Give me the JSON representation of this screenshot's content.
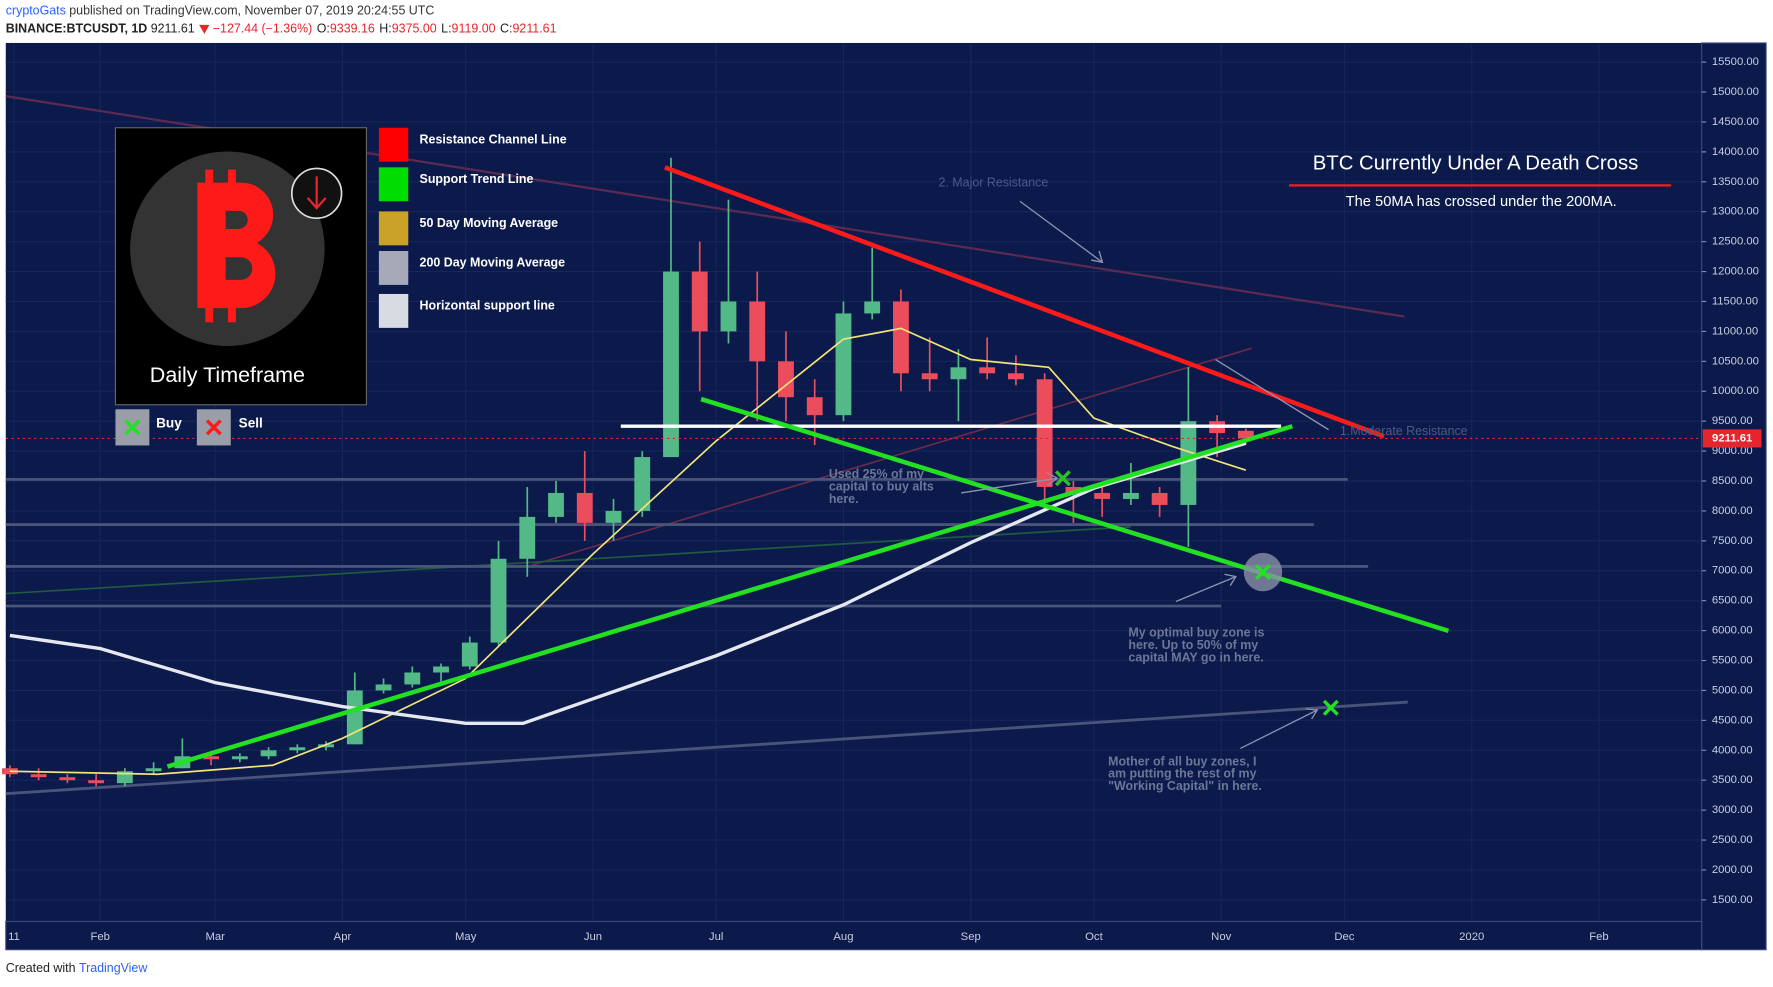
{
  "header": {
    "author": "cryptoGats",
    "published": "published on TradingView.com, November 07, 2019 20:24:55 UTC",
    "symbol": "BINANCE:BTCUSDT, 1D",
    "last": "9211.61",
    "change": "−127.44 (−1.36%)",
    "ohlc": [
      {
        "label": "O:",
        "value": "9339.16"
      },
      {
        "label": "H:",
        "value": "9375.00"
      },
      {
        "label": "L:",
        "value": "9119.00"
      },
      {
        "label": "C:",
        "value": "9211.61"
      }
    ]
  },
  "legend_box": {
    "caption": "Daily Timeframe",
    "items": [
      {
        "label": "Resistance Channel Line",
        "color": "#ff0000"
      },
      {
        "label": "Support Trend Line",
        "color": "#00dd00"
      },
      {
        "label": "50 Day Moving Average",
        "color": "#c9a227"
      },
      {
        "label": "200 Day Moving Average",
        "color": "#a6a9b8"
      },
      {
        "label": "Horizontal support line",
        "color": "#d9dbe2"
      }
    ],
    "buy": "Buy",
    "sell": "Sell"
  },
  "annotations": {
    "headline": "BTC Currently Under A Death Cross",
    "subline": "The 50MA has crossed under the 200MA.",
    "major": "2. Major Resistance",
    "moderate": "1.Moderate Resistance",
    "alts": [
      "Used 25% of my",
      "capital to buy alts",
      "here."
    ],
    "optimal": [
      "My optimal buy zone is",
      "here. Up to 50% of my",
      "capital MAY go in here."
    ],
    "mother": [
      "Mother of all buy zones, I",
      "am putting the rest of my",
      "\"Working Capital\" in here."
    ]
  },
  "footer": {
    "created": "Created with",
    "brand": "TradingView"
  },
  "chart_data": {
    "type": "candlestick",
    "up_color": "#53b987",
    "down_color": "#eb4d5c",
    "candles": {
      "x": [
        "2019-01-10",
        "2019-01-17",
        "2019-01-24",
        "2019-01-31",
        "2019-02-07",
        "2019-02-14",
        "2019-02-21",
        "2019-02-28",
        "2019-03-07",
        "2019-03-14",
        "2019-03-21",
        "2019-03-28",
        "2019-04-04",
        "2019-04-11",
        "2019-04-18",
        "2019-04-25",
        "2019-05-02",
        "2019-05-09",
        "2019-05-16",
        "2019-05-23",
        "2019-05-30",
        "2019-06-06",
        "2019-06-13",
        "2019-06-20",
        "2019-06-27",
        "2019-07-04",
        "2019-07-11",
        "2019-07-18",
        "2019-07-25",
        "2019-08-01",
        "2019-08-08",
        "2019-08-15",
        "2019-08-22",
        "2019-08-29",
        "2019-09-05",
        "2019-09-12",
        "2019-09-19",
        "2019-09-26",
        "2019-10-03",
        "2019-10-10",
        "2019-10-17",
        "2019-10-24",
        "2019-10-31",
        "2019-11-07"
      ],
      "open": [
        3700,
        3600,
        3550,
        3500,
        3450,
        3650,
        3700,
        3900,
        3850,
        3900,
        4000,
        4050,
        4100,
        5000,
        5100,
        5300,
        5400,
        5800,
        7200,
        7900,
        8300,
        7800,
        8000,
        8900,
        12000,
        11000,
        11500,
        10500,
        9900,
        9600,
        11300,
        11500,
        10300,
        10200,
        10400,
        10300,
        10200,
        8400,
        8300,
        8200,
        8300,
        8100,
        9500,
        9339.16
      ],
      "high": [
        3750,
        3700,
        3600,
        3600,
        3700,
        3800,
        4200,
        3950,
        3950,
        4050,
        4100,
        4150,
        5300,
        5200,
        5400,
        5450,
        5900,
        7500,
        8400,
        8500,
        9000,
        8200,
        9000,
        13900,
        12500,
        13200,
        12000,
        11000,
        10200,
        11500,
        12400,
        11700,
        10900,
        10700,
        10900,
        10600,
        10300,
        8500,
        8400,
        8800,
        8400,
        10400,
        9600,
        9375
      ],
      "low": [
        3550,
        3500,
        3450,
        3400,
        3400,
        3600,
        3700,
        3750,
        3800,
        3850,
        3950,
        4000,
        4100,
        4950,
        5050,
        5150,
        5350,
        5750,
        6900,
        7800,
        7500,
        7500,
        7900,
        8900,
        10000,
        10800,
        9500,
        9500,
        9100,
        9500,
        11200,
        10000,
        10000,
        9500,
        10200,
        10100,
        8000,
        7800,
        7900,
        8100,
        7900,
        7400,
        8900,
        9119
      ],
      "close": [
        3600,
        3550,
        3500,
        3450,
        3650,
        3700,
        3900,
        3850,
        3900,
        4000,
        4050,
        4100,
        5000,
        5100,
        5300,
        5400,
        5800,
        7200,
        7900,
        8300,
        7800,
        8000,
        8900,
        12000,
        11000,
        11500,
        10500,
        9900,
        9600,
        11300,
        11500,
        10300,
        10200,
        10400,
        10300,
        10200,
        8400,
        8300,
        8200,
        8300,
        8100,
        9500,
        9300,
        9211.61
      ]
    },
    "lines": [
      {
        "color": "#f2e27a",
        "x": [
          "2019-01-10",
          "2019-02-15",
          "2019-03-15",
          "2019-04-01",
          "2019-05-01",
          "2019-06-01",
          "2019-07-01",
          "2019-08-01",
          "2019-08-15",
          "2019-09-01",
          "2019-09-20",
          "2019-10-01",
          "2019-10-20",
          "2019-11-07"
        ],
        "values": [
          3650,
          3600,
          3750,
          4200,
          5200,
          7280,
          9170,
          10870,
          11050,
          10530,
          10400,
          9550,
          9080,
          8680
        ]
      },
      {
        "color": "#e6e8f0",
        "x": [
          "2019-01-10",
          "2019-02-01",
          "2019-03-01",
          "2019-04-01",
          "2019-05-01",
          "2019-05-15",
          "2019-06-01",
          "2019-07-01",
          "2019-08-01",
          "2019-09-01",
          "2019-10-01",
          "2019-11-07"
        ],
        "values": [
          5920,
          5700,
          5130,
          4730,
          4450,
          4450,
          4860,
          5580,
          6430,
          7470,
          8380,
          9130
        ]
      }
    ],
    "last_price": 9211.61,
    "xlim": [
      "2019-01-09",
      "2020-02-26"
    ],
    "xticks": [
      {
        "value": "2019-01-11",
        "label": "11"
      },
      {
        "value": "2019-02-01",
        "label": "Feb"
      },
      {
        "value": "2019-03-01",
        "label": "Mar"
      },
      {
        "value": "2019-04-01",
        "label": "Apr"
      },
      {
        "value": "2019-05-01",
        "label": "May"
      },
      {
        "value": "2019-06-01",
        "label": "Jun"
      },
      {
        "value": "2019-07-01",
        "label": "Jul"
      },
      {
        "value": "2019-08-01",
        "label": "Aug"
      },
      {
        "value": "2019-09-01",
        "label": "Sep"
      },
      {
        "value": "2019-10-01",
        "label": "Oct"
      },
      {
        "value": "2019-11-01",
        "label": "Nov"
      },
      {
        "value": "2019-12-01",
        "label": "Dec"
      },
      {
        "value": "2020-01-01",
        "label": "2020"
      },
      {
        "value": "2020-02-01",
        "label": "Feb"
      }
    ],
    "ylim": [
      1140,
      15820
    ],
    "yticks": [
      {
        "value": 1500,
        "label": "1500.00"
      },
      {
        "value": 2000,
        "label": "2000.00"
      },
      {
        "value": 2500,
        "label": "2500.00"
      },
      {
        "value": 3000,
        "label": "3000.00"
      },
      {
        "value": 3500,
        "label": "3500.00"
      },
      {
        "value": 4000,
        "label": "4000.00"
      },
      {
        "value": 4500,
        "label": "4500.00"
      },
      {
        "value": 5000,
        "label": "5000.00"
      },
      {
        "value": 5500,
        "label": "5500.00"
      },
      {
        "value": 6000,
        "label": "6000.00"
      },
      {
        "value": 6500,
        "label": "6500.00"
      },
      {
        "value": 7000,
        "label": "7000.00"
      },
      {
        "value": 7500,
        "label": "7500.00"
      },
      {
        "value": 8000,
        "label": "8000.00"
      },
      {
        "value": 8500,
        "label": "8500.00"
      },
      {
        "value": 9000,
        "label": "9000.00"
      },
      {
        "value": 9500,
        "label": "9500.00"
      },
      {
        "value": 10000,
        "label": "10000.00"
      },
      {
        "value": 10500,
        "label": "10500.00"
      },
      {
        "value": 11000,
        "label": "11000.00"
      },
      {
        "value": 11500,
        "label": "11500.00"
      },
      {
        "value": 12000,
        "label": "12000.00"
      },
      {
        "value": 12500,
        "label": "12500.00"
      },
      {
        "value": 13000,
        "label": "13000.00"
      },
      {
        "value": 13500,
        "label": "13500.00"
      },
      {
        "value": 14000,
        "label": "14000.00"
      },
      {
        "value": 14500,
        "label": "14500.00"
      },
      {
        "value": 15000,
        "label": "15000.00"
      },
      {
        "value": 15500,
        "label": "15500.00"
      }
    ]
  }
}
